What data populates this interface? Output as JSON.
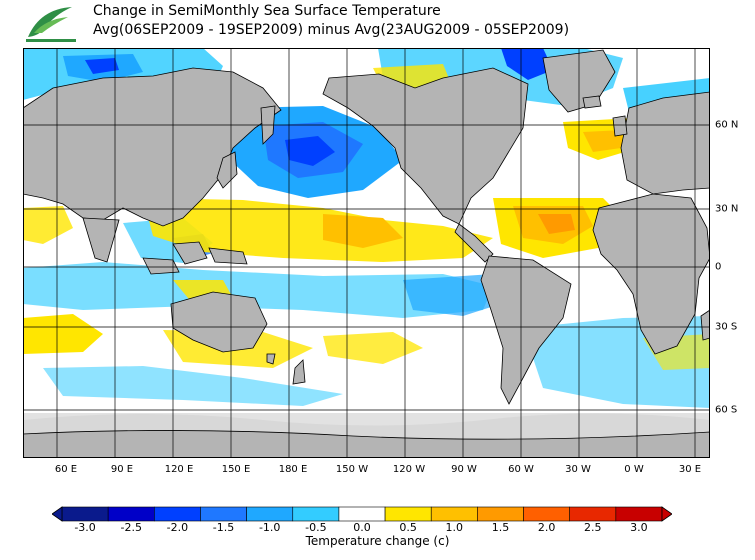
{
  "title_line1": "Change in SemiMonthly Sea Surface Temperature",
  "title_line2": "Avg(06SEP2009 - 19SEP2009) minus Avg(23AUG2009 - 05SEP2009)",
  "x_ticks": [
    "60 E",
    "90 E",
    "120 E",
    "150 E",
    "180 E",
    "150 W",
    "120 W",
    "90 W",
    "60 W",
    "30 W",
    "0 W",
    "30 E"
  ],
  "y_ticks": [
    "60 N",
    "30 N",
    "0",
    "30 S",
    "60 S"
  ],
  "colorbar": {
    "ticks": [
      "-3.0",
      "-2.5",
      "-2.0",
      "-1.5",
      "-1.0",
      "-0.5",
      "0.0",
      "0.5",
      "1.0",
      "1.5",
      "2.0",
      "2.5",
      "3.0"
    ],
    "colors": [
      "#0a1a8c",
      "#0000c8",
      "#0040ff",
      "#1f78ff",
      "#1fa8ff",
      "#33ccff",
      "#ffffff",
      "#ffe600",
      "#ffc000",
      "#ff9a00",
      "#ff6000",
      "#e82800",
      "#c80000"
    ],
    "title": "Temperature change  (c)"
  },
  "colors": {
    "land": "#b4b4b4",
    "ice": "#e2e2e2",
    "neutral": "#ffffff"
  }
}
